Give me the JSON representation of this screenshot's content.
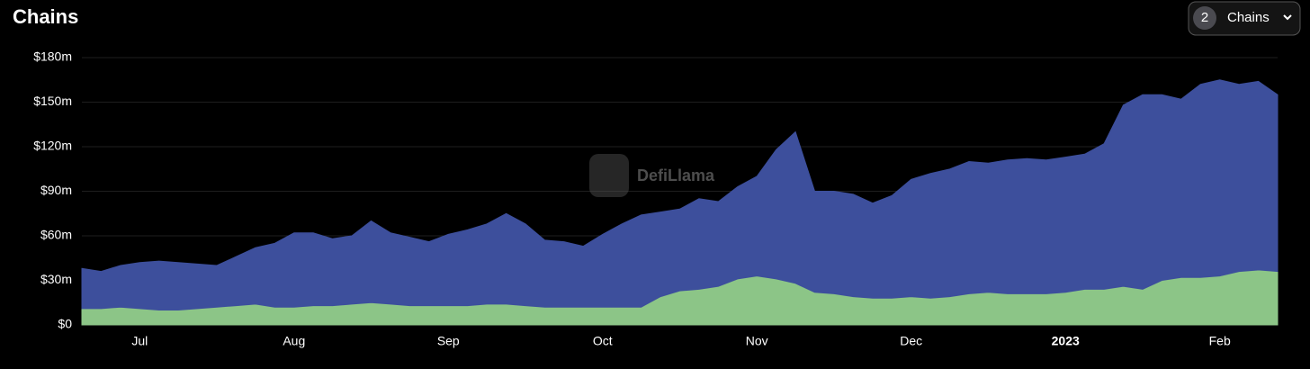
{
  "chart_data": {
    "type": "stacked-area",
    "title": "Chains",
    "control": {
      "count": 2,
      "label": "Chains"
    },
    "watermark": "DefiLlama",
    "categories": [
      null,
      null,
      null,
      "Jul",
      null,
      null,
      null,
      null,
      null,
      null,
      null,
      "Aug",
      null,
      null,
      null,
      null,
      null,
      null,
      null,
      "Sep",
      null,
      null,
      null,
      null,
      null,
      null,
      null,
      "Oct",
      null,
      null,
      null,
      null,
      null,
      null,
      null,
      "Nov",
      null,
      null,
      null,
      null,
      null,
      null,
      null,
      "Dec",
      null,
      null,
      null,
      null,
      null,
      null,
      null,
      "2023",
      null,
      null,
      null,
      null,
      null,
      null,
      null,
      "Feb",
      null,
      null,
      null
    ],
    "series": [
      {
        "color": "#8cc587",
        "values": [
          11,
          11,
          12,
          11,
          10,
          10,
          11,
          12,
          13,
          14,
          12,
          12,
          13,
          13,
          14,
          15,
          14,
          13,
          13,
          13,
          13,
          14,
          14,
          13,
          12,
          12,
          12,
          12,
          12,
          12,
          19,
          23,
          24,
          26,
          31,
          33,
          31,
          28,
          22,
          21,
          19,
          18,
          18,
          19,
          18,
          19,
          21,
          22,
          21,
          21,
          21,
          22,
          24,
          24,
          26,
          24,
          30,
          32,
          32,
          33,
          36,
          37,
          36
        ]
      },
      {
        "color": "#3d4f9c",
        "values": [
          27,
          25,
          28,
          31,
          33,
          32,
          30,
          28,
          33,
          38,
          43,
          50,
          49,
          45,
          46,
          55,
          48,
          46,
          43,
          48,
          51,
          54,
          61,
          55,
          45,
          44,
          41,
          49,
          56,
          62,
          57,
          55,
          61,
          57,
          62,
          67,
          87,
          102,
          68,
          69,
          69,
          64,
          69,
          79,
          84,
          86,
          89,
          87,
          90,
          91,
          90,
          91,
          91,
          98,
          122,
          131,
          125,
          120,
          130,
          132,
          126,
          127,
          119
        ]
      }
    ],
    "ylim": [
      0,
      180
    ],
    "yticks": [
      {
        "value": 0,
        "label": "$0"
      },
      {
        "value": 30,
        "label": "$30m"
      },
      {
        "value": 60,
        "label": "$60m"
      },
      {
        "value": 90,
        "label": "$90m"
      },
      {
        "value": 120,
        "label": "$120m"
      },
      {
        "value": 150,
        "label": "$150m"
      },
      {
        "value": 180,
        "label": "$180m"
      }
    ],
    "grid": true
  }
}
